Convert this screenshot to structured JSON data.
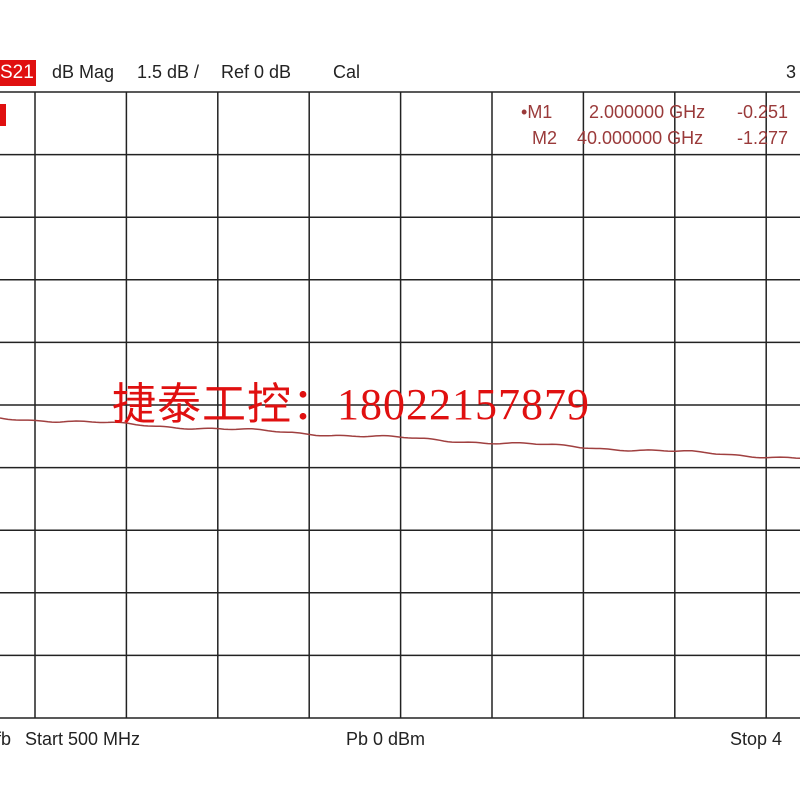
{
  "header": {
    "trace_label": "S21",
    "format": "dB Mag",
    "scale": "1.5 dB /",
    "ref": "Ref 0 dB",
    "cal": "Cal",
    "channel": "3"
  },
  "markers": [
    {
      "name": "M1",
      "freq": "2.000000 GHz",
      "value": "-0.251",
      "active": true
    },
    {
      "name": "M2",
      "freq": "40.000000 GHz",
      "value": "-1.277",
      "active": false
    }
  ],
  "footer": {
    "left_fragment": "fb",
    "start": "Start  500 MHz",
    "power": "Pb    0 dBm",
    "stop": "Stop  4"
  },
  "watermark": "捷泰工控：18022157879",
  "colors": {
    "trace": "#a04040",
    "accent": "#e01010",
    "grid": "#222222"
  }
}
